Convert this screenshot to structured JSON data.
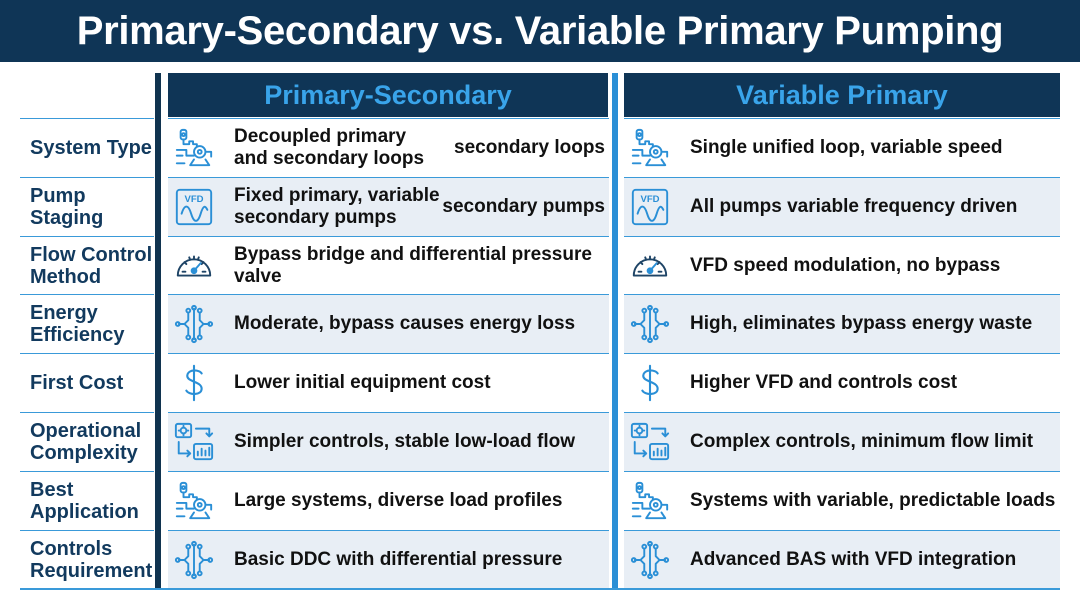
{
  "title": "Primary-Secondary vs. Variable Primary Pumping",
  "columns": {
    "ps": "Primary-Secondary",
    "vp": "Variable Primary"
  },
  "rows": [
    {
      "label": "System Type",
      "ps_icon": "pump-icon",
      "ps": "Decoupled primary and secondary loops",
      "ps_extra": "secondary loops",
      "vp_icon": "pump-icon",
      "vp": "Single unified loop, variable speed"
    },
    {
      "label": "Pump Staging",
      "ps_icon": "vfd-icon",
      "ps": "Fixed primary, variable secondary pumps",
      "ps_extra": "secondary pumps",
      "vp_icon": "vfd-icon",
      "vp": "All pumps variable frequency driven"
    },
    {
      "label": "Flow Control Method",
      "ps_icon": "gauge-icon",
      "ps": "Bypass bridge and differential pressure valve",
      "ps_extra": "",
      "vp_icon": "gauge-icon",
      "vp": "VFD speed modulation, no bypass"
    },
    {
      "label": "Energy Efficiency",
      "ps_icon": "circuit-icon",
      "ps": "Moderate, bypass causes energy loss",
      "ps_extra": "",
      "vp_icon": "circuit-icon",
      "vp": "High, eliminates bypass energy waste"
    },
    {
      "label": "First Cost",
      "ps_icon": "dollar-icon",
      "ps": "Lower initial equipment cost",
      "ps_extra": "",
      "vp_icon": "dollar-icon",
      "vp": "Higher VFD and controls cost"
    },
    {
      "label": "Operational Complexity",
      "ps_icon": "controls-icon",
      "ps": "Simpler controls, stable low-load flow",
      "ps_extra": "",
      "vp_icon": "controls-icon",
      "vp": "Complex controls, minimum flow limit"
    },
    {
      "label": "Best Application",
      "ps_icon": "pump-icon",
      "ps": "Large systems, diverse load profiles",
      "ps_extra": "",
      "vp_icon": "pump-icon",
      "vp": "Systems with variable, predictable loads"
    },
    {
      "label": "Controls Requirement",
      "ps_icon": "circuit-icon",
      "ps": "Basic DDC with differential pressure",
      "ps_extra": "",
      "vp_icon": "circuit-icon",
      "vp": "Advanced BAS with VFD integration"
    }
  ],
  "icon_labels": {
    "vfd": "VFD"
  },
  "colors": {
    "navy": "#0f3556",
    "accent": "#2a8fd6",
    "row_shade": "#e8eef5",
    "label": "#123a5e"
  }
}
